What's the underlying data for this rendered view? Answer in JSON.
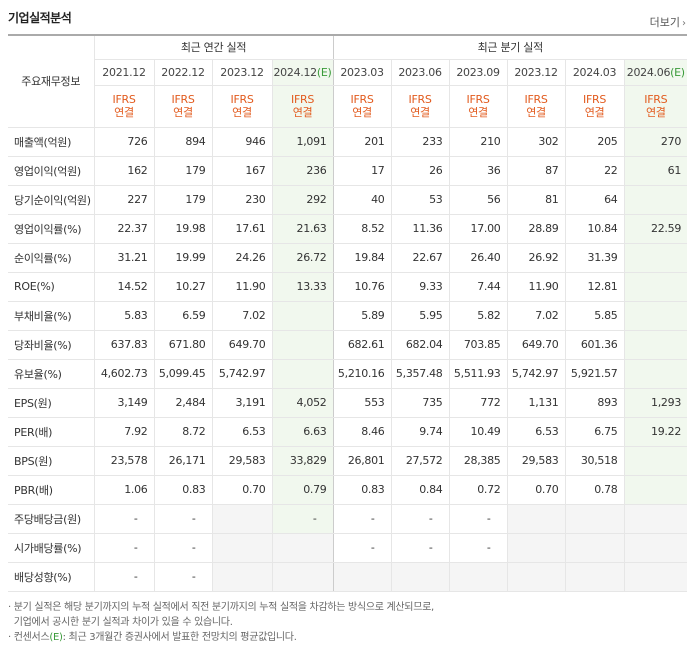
{
  "header": {
    "title": "기업실적분석",
    "more_label": "더보기"
  },
  "table": {
    "row_header": "주요재무정보",
    "groups": {
      "annual": "최근 연간 실적",
      "quarterly": "최근 분기 실적"
    },
    "periods": [
      "2021.12",
      "2022.12",
      "2023.12",
      "2024.12(E)",
      "2023.03",
      "2023.06",
      "2023.09",
      "2023.12",
      "2024.03",
      "2024.06(E)"
    ],
    "ifrs_line1": "IFRS",
    "ifrs_line2": "연결",
    "rows": [
      {
        "label": "매출액(억원)",
        "values": [
          "726",
          "894",
          "946",
          "1,091",
          "201",
          "233",
          "210",
          "302",
          "205",
          "270"
        ]
      },
      {
        "label": "영업이익(억원)",
        "values": [
          "162",
          "179",
          "167",
          "236",
          "17",
          "26",
          "36",
          "87",
          "22",
          "61"
        ]
      },
      {
        "label": "당기순이익(억원)",
        "values": [
          "227",
          "179",
          "230",
          "292",
          "40",
          "53",
          "56",
          "81",
          "64",
          ""
        ]
      },
      {
        "label": "영업이익률(%)",
        "values": [
          "22.37",
          "19.98",
          "17.61",
          "21.63",
          "8.52",
          "11.36",
          "17.00",
          "28.89",
          "10.84",
          "22.59"
        ]
      },
      {
        "label": "순이익률(%)",
        "values": [
          "31.21",
          "19.99",
          "24.26",
          "26.72",
          "19.84",
          "22.67",
          "26.40",
          "26.92",
          "31.39",
          ""
        ]
      },
      {
        "label": "ROE(%)",
        "values": [
          "14.52",
          "10.27",
          "11.90",
          "13.33",
          "10.76",
          "9.33",
          "7.44",
          "11.90",
          "12.81",
          ""
        ]
      },
      {
        "label": "부채비율(%)",
        "values": [
          "5.83",
          "6.59",
          "7.02",
          "",
          "5.89",
          "5.95",
          "5.82",
          "7.02",
          "5.85",
          ""
        ]
      },
      {
        "label": "당좌비율(%)",
        "values": [
          "637.83",
          "671.80",
          "649.70",
          "",
          "682.61",
          "682.04",
          "703.85",
          "649.70",
          "601.36",
          ""
        ]
      },
      {
        "label": "유보율(%)",
        "values": [
          "4,602.73",
          "5,099.45",
          "5,742.97",
          "",
          "5,210.16",
          "5,357.48",
          "5,511.93",
          "5,742.97",
          "5,921.57",
          ""
        ]
      },
      {
        "label": "EPS(원)",
        "values": [
          "3,149",
          "2,484",
          "3,191",
          "4,052",
          "553",
          "735",
          "772",
          "1,131",
          "893",
          "1,293"
        ]
      },
      {
        "label": "PER(배)",
        "values": [
          "7.92",
          "8.72",
          "6.53",
          "6.63",
          "8.46",
          "9.74",
          "10.49",
          "6.53",
          "6.75",
          "19.22"
        ]
      },
      {
        "label": "BPS(원)",
        "values": [
          "23,578",
          "26,171",
          "29,583",
          "33,829",
          "26,801",
          "27,572",
          "28,385",
          "29,583",
          "30,518",
          ""
        ]
      },
      {
        "label": "PBR(배)",
        "values": [
          "1.06",
          "0.83",
          "0.70",
          "0.79",
          "0.83",
          "0.84",
          "0.72",
          "0.70",
          "0.78",
          ""
        ]
      },
      {
        "label": "주당배당금(원)",
        "values": [
          "-",
          "-",
          "",
          "-",
          "-",
          "-",
          "-",
          "",
          "",
          ""
        ]
      },
      {
        "label": "시가배당률(%)",
        "values": [
          "-",
          "-",
          "",
          "",
          "-",
          "-",
          "-",
          "",
          "",
          ""
        ]
      },
      {
        "label": "배당성향(%)",
        "values": [
          "-",
          "-",
          "",
          "",
          "",
          "",
          "",
          "",
          "",
          ""
        ]
      }
    ]
  },
  "notes": {
    "line1": "· 분기 실적은 해당 분기까지의 누적 실적에서 직전 분기까지의 누적 실적을 차감하는 방식으로 계산되므로,",
    "line2": "  기업에서 공시한 분기 실적과 차이가 있을 수 있습니다.",
    "line3_prefix": "· 컨센서스",
    "line3_mark": "(E)",
    "line3_suffix": ": 최근 3개월간 증권사에서 발표한 전망치의 평균값입니다."
  },
  "colors": {
    "ifrs": "#e25b1e",
    "estimate_bg": "#f1f8ee",
    "estimate_text": "#3a9b3a",
    "empty_bg": "#f5f5f5"
  }
}
